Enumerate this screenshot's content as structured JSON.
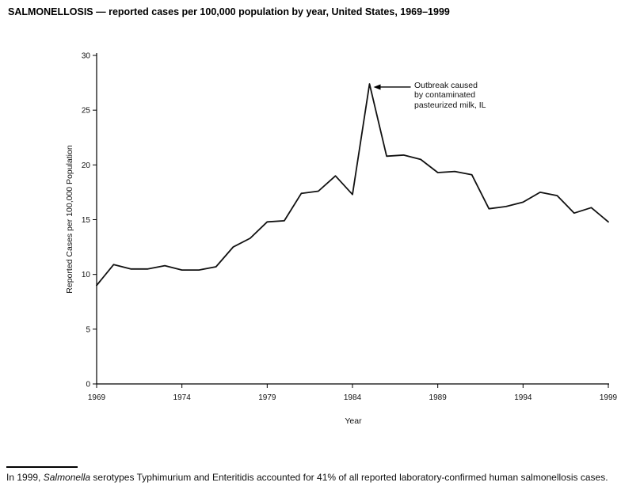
{
  "title": "SALMONELLOSIS — reported cases per 100,000 population by year, United States, 1969–1999",
  "chart_data": {
    "type": "line",
    "title": "SALMONELLOSIS — reported cases per 100,000 population by year, United States, 1969–1999",
    "xlabel": "Year",
    "ylabel": "Reported Cases per 100,000 Population",
    "xlim": [
      1969,
      1999
    ],
    "ylim": [
      0,
      30
    ],
    "x_ticks": [
      1969,
      1974,
      1979,
      1984,
      1989,
      1994,
      1999
    ],
    "y_ticks": [
      0,
      5,
      10,
      15,
      20,
      25,
      30
    ],
    "grid": false,
    "legend": "none",
    "line_color": "#111111",
    "x": [
      1969,
      1970,
      1971,
      1972,
      1973,
      1974,
      1975,
      1976,
      1977,
      1978,
      1979,
      1980,
      1981,
      1982,
      1983,
      1984,
      1985,
      1986,
      1987,
      1988,
      1989,
      1990,
      1991,
      1992,
      1993,
      1994,
      1995,
      1996,
      1997,
      1998,
      1999
    ],
    "values": [
      9.0,
      10.9,
      10.5,
      10.5,
      10.8,
      10.4,
      10.4,
      10.7,
      12.5,
      13.3,
      14.8,
      14.9,
      17.4,
      17.6,
      19.0,
      17.3,
      27.4,
      20.8,
      20.9,
      20.5,
      19.3,
      19.4,
      19.1,
      16.0,
      16.2,
      16.6,
      17.5,
      17.2,
      15.6,
      16.1,
      14.8
    ],
    "annotation": {
      "text": "Outbreak caused\nby contaminated\npasteurized milk, IL",
      "target_year": 1985,
      "target_value": 27.4
    }
  },
  "footnote": {
    "prefix": "In 1999, ",
    "italic": "Salmonella",
    "rest": " serotypes Typhimurium and Enteritidis accounted for 41% of all reported laboratory-confirmed human salmonellosis cases."
  }
}
